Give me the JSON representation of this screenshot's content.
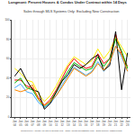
{
  "chart_data": {
    "type": "line",
    "title": "Longmont: Percent Houses & Condos Under Contract within 14 Days",
    "subtitle": "Sales through MLS Systems Only: Excluding New Construction",
    "footer": "Compiled by Agentry for Steve Downs LLC   www.AgentryRealEstate.com   Data Source: REColorado",
    "categories": [
      "Jan\n04",
      "Jan\n05",
      "Jan\n06",
      "Jan\n07",
      "Jan\n08",
      "Jan\n09",
      "Jan\n10",
      "Jan\n11",
      "Jan\n12",
      "Jan\n13",
      "Jan\n14",
      "Jan\n15",
      "Jan\n16",
      "Jan\n17",
      "Jan\n18",
      "Jan\n19",
      "Jan\n20",
      "Jan\n21",
      "Jan\n22",
      "Jan\n23"
    ],
    "series": [
      {
        "color": "#ff0000",
        "values": [
          38,
          38,
          32,
          30,
          20,
          12,
          18,
          28,
          40,
          52,
          60,
          54,
          50,
          52,
          65,
          55,
          60,
          85,
          65,
          52
        ]
      },
      {
        "color": "#ffee00",
        "values": [
          50,
          45,
          38,
          36,
          24,
          16,
          22,
          32,
          44,
          54,
          62,
          58,
          54,
          58,
          70,
          60,
          68,
          82,
          72,
          62
        ]
      },
      {
        "color": "#00bb00",
        "values": [
          35,
          40,
          30,
          28,
          18,
          10,
          16,
          26,
          38,
          47,
          56,
          52,
          48,
          50,
          62,
          52,
          60,
          80,
          68,
          50
        ]
      },
      {
        "color": "#44aaff",
        "values": [
          30,
          34,
          26,
          24,
          15,
          10,
          14,
          22,
          33,
          43,
          51,
          47,
          43,
          47,
          57,
          47,
          55,
          73,
          62,
          47
        ]
      },
      {
        "color": "#000000",
        "values": [
          42,
          50,
          38,
          28,
          26,
          8,
          14,
          26,
          37,
          44,
          54,
          50,
          54,
          60,
          64,
          48,
          53,
          88,
          28,
          66
        ]
      },
      {
        "color": "#ff8800",
        "values": [
          28,
          26,
          28,
          33,
          18,
          12,
          16,
          22,
          31,
          41,
          50,
          46,
          42,
          46,
          55,
          48,
          56,
          73,
          64,
          47
        ]
      }
    ],
    "ylim": [
      0,
      100
    ],
    "yticks": [
      0,
      20,
      40,
      60,
      80,
      100
    ],
    "grid": true
  }
}
